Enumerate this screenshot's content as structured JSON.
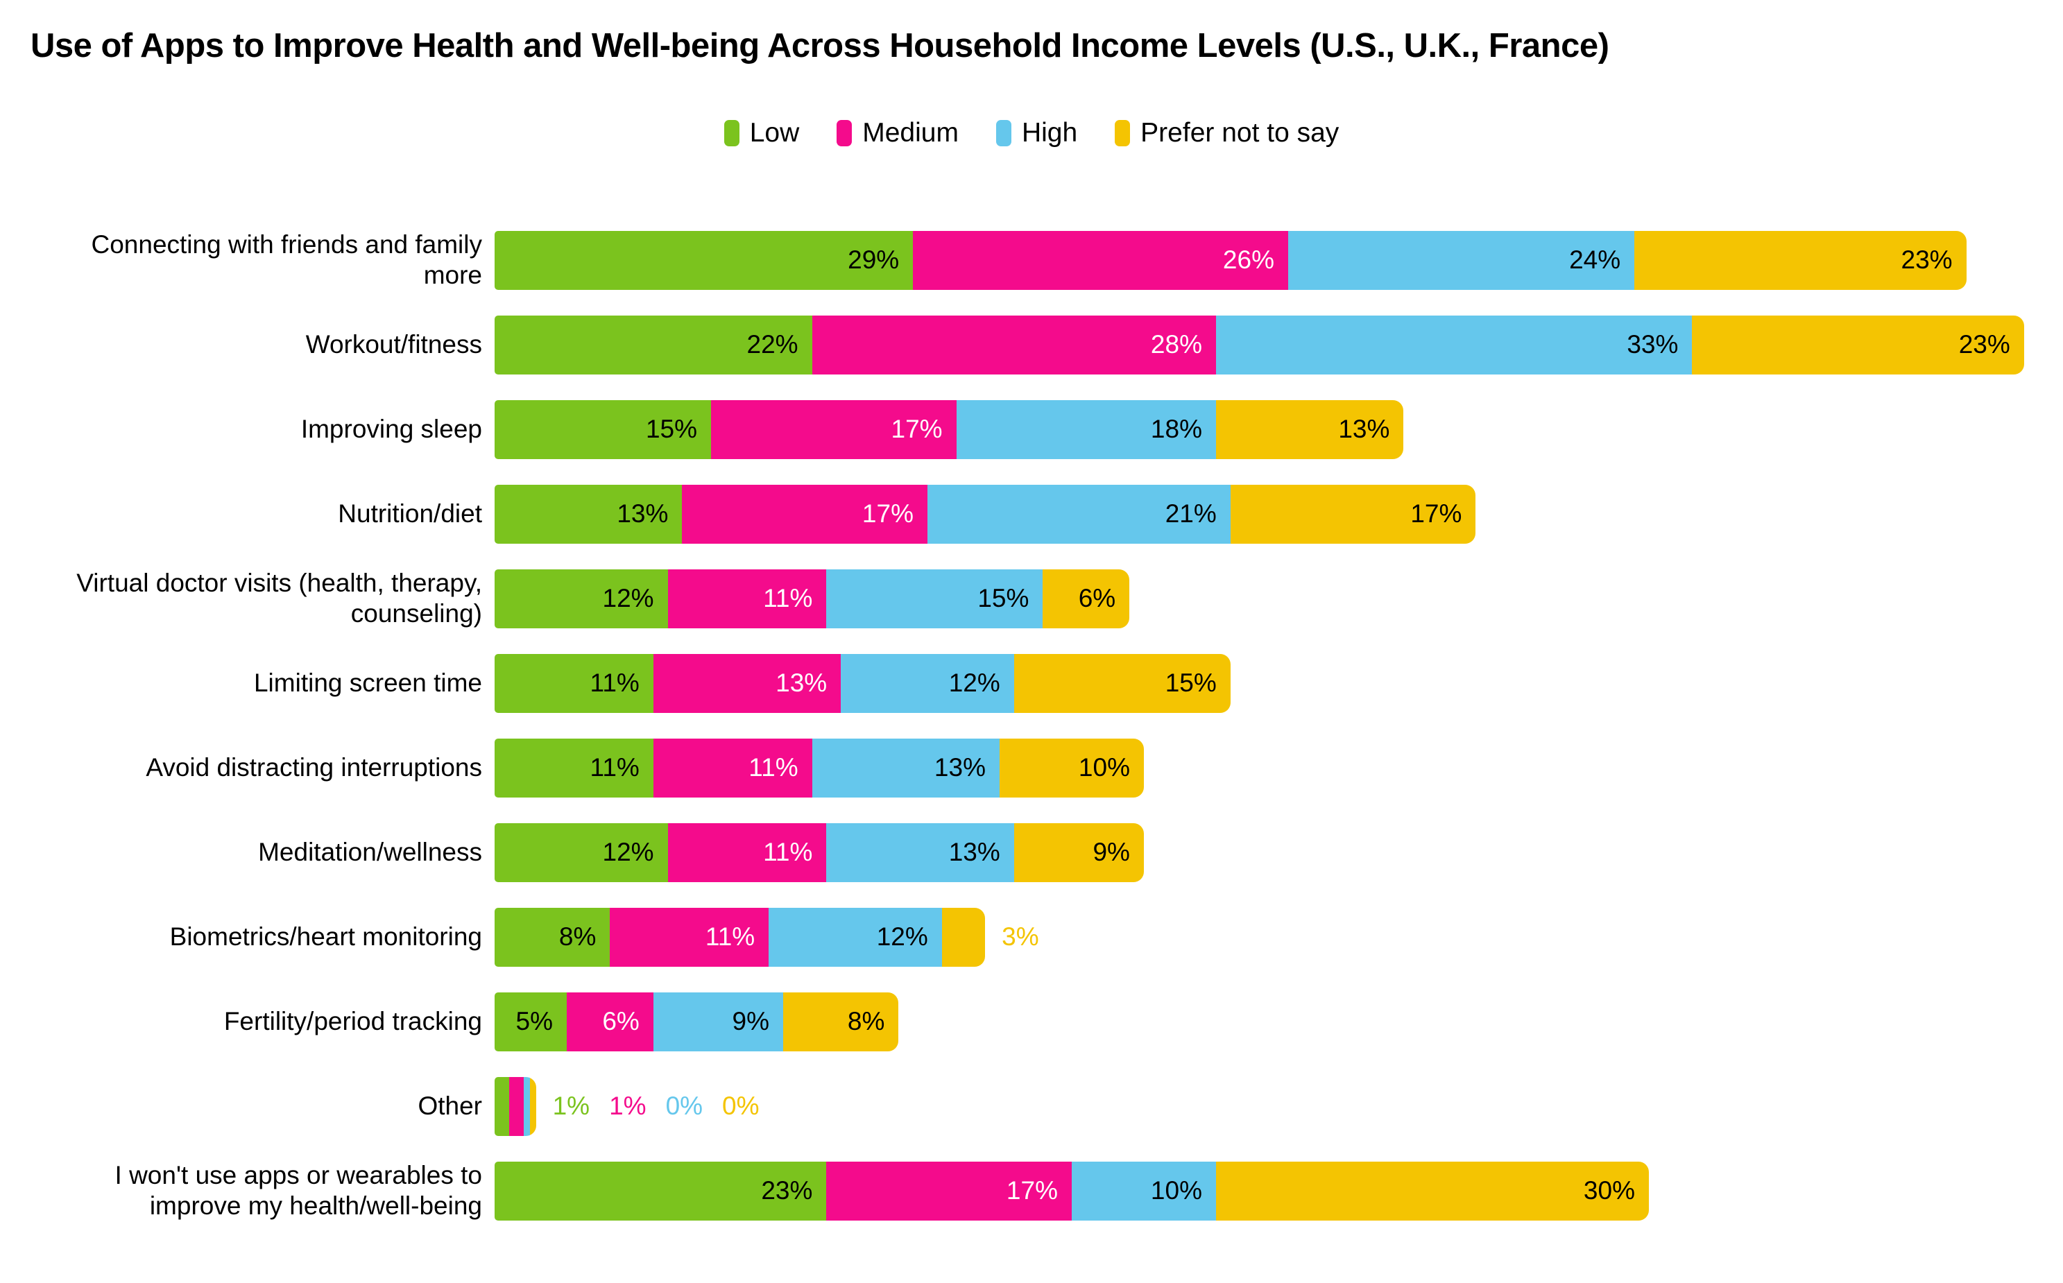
{
  "title": "Use of Apps to Improve Health and Well-being Across Household Income Levels (U.S., U.K., France)",
  "legend": {
    "items": [
      {
        "label": "Low",
        "color": "#7BC31E"
      },
      {
        "label": "Medium",
        "color": "#F40B8C"
      },
      {
        "label": "High",
        "color": "#65C7EC"
      },
      {
        "label": "Prefer not to say",
        "color": "#F4C402"
      }
    ]
  },
  "chart_data": {
    "type": "bar",
    "stacked": true,
    "orientation": "horizontal",
    "value_unit": "%",
    "grid": false,
    "axes_shown": false,
    "legend_position": "top-center",
    "xlim": [
      0,
      106
    ],
    "categories": [
      "Connecting with friends and family more",
      "Workout/fitness",
      "Improving sleep",
      "Nutrition/diet",
      "Virtual doctor visits (health, therapy, counseling)",
      "Limiting screen time",
      "Avoid distracting interruptions",
      "Meditation/wellness",
      "Biometrics/heart monitoring",
      "Fertility/period tracking",
      "Other",
      "I won't use apps or wearables to improve my health/well-being"
    ],
    "series": [
      {
        "name": "Low",
        "color": "#7BC31E",
        "label_text_color": "#000000",
        "values": [
          29,
          22,
          15,
          13,
          12,
          11,
          11,
          12,
          8,
          5,
          1,
          23
        ]
      },
      {
        "name": "Medium",
        "color": "#F40B8C",
        "label_text_color": "#FFFFFF",
        "values": [
          26,
          28,
          17,
          17,
          11,
          13,
          11,
          11,
          11,
          6,
          1,
          17
        ]
      },
      {
        "name": "High",
        "color": "#65C7EC",
        "label_text_color": "#000000",
        "values": [
          24,
          33,
          18,
          21,
          15,
          12,
          13,
          13,
          12,
          9,
          0,
          10
        ]
      },
      {
        "name": "Prefer not to say",
        "color": "#F4C402",
        "label_text_color": "#000000",
        "values": [
          23,
          23,
          13,
          17,
          6,
          15,
          10,
          9,
          3,
          8,
          0,
          30
        ]
      }
    ]
  }
}
